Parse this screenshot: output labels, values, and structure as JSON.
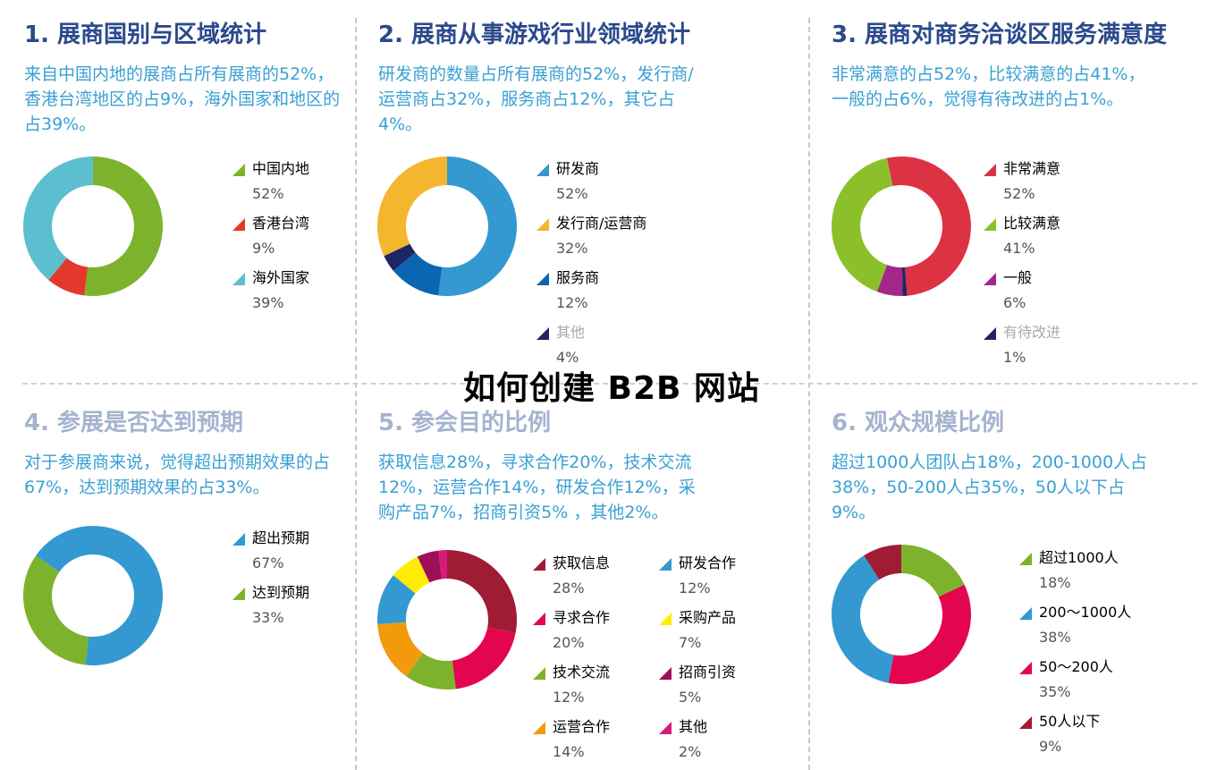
{
  "watermark": "如何创建 B2B 网站",
  "chart_data": [
    {
      "type": "pie",
      "title": "1. 展商国别与区域统计",
      "description": "来自中国内地的展商占所有展商的52%，香港台湾地区的占9%，海外国家和地区的占39%。",
      "categories": [
        "中国内地",
        "香港台湾",
        "海外国家"
      ],
      "values": [
        52,
        9,
        39
      ],
      "labels": [
        "52%",
        "9%",
        "39%"
      ],
      "colors": [
        "#7db32c",
        "#e2392c",
        "#5cbfd0"
      ]
    },
    {
      "type": "pie",
      "title": "2. 展商从事游戏行业领域统计",
      "description": "研发商的数量占所有展商的52%，发行商/运营商占32%，服务商占12%，其它占4%。",
      "categories": [
        "研发商",
        "发行商/运营商",
        "服务商",
        "其他"
      ],
      "values": [
        52,
        32,
        12,
        4
      ],
      "labels": [
        "52%",
        "32%",
        "12%",
        "4%"
      ],
      "colors": [
        "#3399d0",
        "#f4b52f",
        "#0a66b0",
        "#1d2565"
      ]
    },
    {
      "type": "pie",
      "title": "3. 展商对商务洽谈区服务满意度",
      "description": "非常满意的占52%，比较满意的占41%，一般的占6%，觉得有待改进的占1%。",
      "categories": [
        "非常满意",
        "比较满意",
        "一般",
        "有待改进"
      ],
      "values": [
        52,
        41,
        6,
        1
      ],
      "labels": [
        "52%",
        "41%",
        "6%",
        "1%"
      ],
      "colors": [
        "#dc3244",
        "#8cc02a",
        "#a3288a",
        "#1d2565"
      ]
    },
    {
      "type": "pie",
      "title": "4. 参展是否达到预期",
      "description": "对于参展商来说，觉得超出预期效果的占67%，达到预期效果的占33%。",
      "categories": [
        "超出预期",
        "达到预期"
      ],
      "values": [
        67,
        33
      ],
      "labels": [
        "67%",
        "33%"
      ],
      "colors": [
        "#3399d0",
        "#7db32c"
      ]
    },
    {
      "type": "pie",
      "title": "5. 参会目的比例",
      "description": "获取信息28%，寻求合作20%，技术交流12%，运营合作14%，研发合作12%，采购产品7%，招商引资5% ，其他2%。",
      "categories": [
        "获取信息",
        "寻求合作",
        "技术交流",
        "运营合作",
        "研发合作",
        "采购产品",
        "招商引资",
        "其他"
      ],
      "values": [
        28,
        20,
        12,
        14,
        12,
        7,
        5,
        2
      ],
      "labels": [
        "28%",
        "20%",
        "12%",
        "14%",
        "12%",
        "7%",
        "5%",
        "2%"
      ],
      "colors": [
        "#a01c35",
        "#e3064f",
        "#7db32c",
        "#f29a0c",
        "#3399d0",
        "#ffec00",
        "#9e0f5a",
        "#d81b78"
      ]
    },
    {
      "type": "pie",
      "title": "6. 观众规模比例",
      "description": "超过1000人团队占18%，200-1000人占38%，50-200人占35%，50人以下占9%。",
      "categories": [
        "超过1000人",
        "200～1000人",
        "50～200人",
        "50人以下"
      ],
      "values": [
        18,
        38,
        35,
        9
      ],
      "labels": [
        "18%",
        "38%",
        "35%",
        "9%"
      ],
      "colors": [
        "#7db32c",
        "#3399d0",
        "#e3064f",
        "#a01c35"
      ]
    }
  ]
}
